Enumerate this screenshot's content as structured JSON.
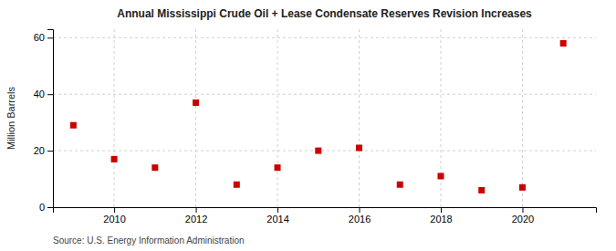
{
  "chart_data": {
    "type": "scatter",
    "title": "Annual Mississippi Crude Oil + Lease Condensate Reserves Revision Increases",
    "ylabel": "Million Barrels",
    "source": "Source: U.S. Energy Information Administration",
    "x": [
      2009,
      2010,
      2011,
      2012,
      2013,
      2014,
      2015,
      2016,
      2017,
      2018,
      2019,
      2020,
      2021
    ],
    "values": [
      29,
      17,
      14,
      37,
      8,
      14,
      20,
      21,
      8,
      11,
      6,
      7,
      58
    ],
    "color": "#cc0000",
    "marker": "square",
    "xlim": [
      2008.5,
      2021.8
    ],
    "ylim": [
      0,
      63
    ],
    "xticks": [
      2010,
      2012,
      2014,
      2016,
      2018,
      2020
    ],
    "yticks": [
      0,
      20,
      40,
      60
    ],
    "grid": true
  }
}
